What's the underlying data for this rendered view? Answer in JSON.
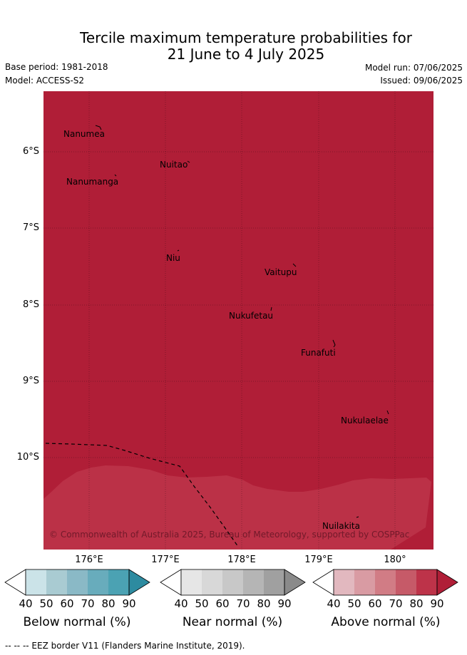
{
  "header": {
    "title_line1": "Tercile maximum temperature probabilities for",
    "title_line2": "21 June to 4 July 2025",
    "base_period": "Base period: 1981-2018",
    "model": "Model: ACCESS-S2",
    "model_run": "Model run: 07/06/2025",
    "issued": "Issued: 09/06/2025"
  },
  "map": {
    "lat_labels": [
      "6°S",
      "7°S",
      "8°S",
      "9°S",
      "10°S"
    ],
    "lon_labels": [
      "176°E",
      "177°E",
      "178°E",
      "179°E",
      "180°"
    ],
    "islands": [
      "Nanumea",
      "Nuitao",
      "Nanumanga",
      "Niu",
      "Vaitupu",
      "Nukufetau",
      "Funafuti",
      "Nukulaelae",
      "Nuilakita"
    ],
    "copyright": "© Commonwealth of Australia 2025, Bureau of Meteorology, supported by COSPPac",
    "colors": {
      "above_90": "#b01e37",
      "above_80": "#bb3147"
    }
  },
  "legend": {
    "ticks": [
      "40",
      "50",
      "60",
      "70",
      "80",
      "90"
    ],
    "below_label": "Below normal (%)",
    "near_label": "Near normal (%)",
    "above_label": "Above normal (%)",
    "below_colors": [
      "#ffffff",
      "#cbe3e8",
      "#a9cbd2",
      "#8ab9c6",
      "#68acbc",
      "#4ba2b3",
      "#2d8ba0"
    ],
    "near_colors": [
      "#ffffff",
      "#e6e6e6",
      "#d8d8d8",
      "#c8c8c8",
      "#b5b5b5",
      "#a0a0a0",
      "#8a8a8a"
    ],
    "above_colors": [
      "#ffffff",
      "#e2b8bf",
      "#d99ba3",
      "#d17c85",
      "#c65a68",
      "#bd3349",
      "#b01e37"
    ]
  },
  "footer": "--  --  -- EEZ border V11 (Flanders Marine Institute, 2019)."
}
